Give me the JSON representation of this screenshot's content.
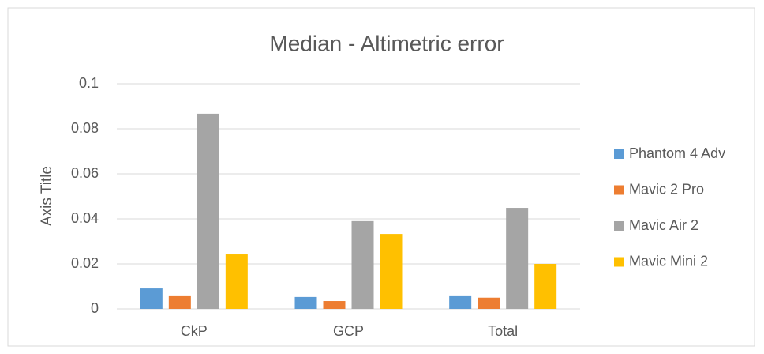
{
  "chart_data": {
    "type": "bar",
    "title": "Median - Altimetric error",
    "y_label": "Axis Title",
    "categories": [
      "CkP",
      "GCP",
      "Total"
    ],
    "series": [
      {
        "name": "Phantom 4 Adv",
        "color": "#5b9bd5",
        "values": [
          0.0091,
          0.0053,
          0.006
        ]
      },
      {
        "name": "Mavic 2 Pro",
        "color": "#ed7d31",
        "values": [
          0.006,
          0.0035,
          0.005
        ]
      },
      {
        "name": "Mavic Air 2",
        "color": "#a5a5a5",
        "values": [
          0.0867,
          0.039,
          0.0449
        ]
      },
      {
        "name": "Mavic Mini 2",
        "color": "#ffc000",
        "values": [
          0.0242,
          0.0333,
          0.02
        ]
      }
    ],
    "ylim": [
      0,
      0.1
    ],
    "yticks": [
      0,
      0.02,
      0.04,
      0.06,
      0.08,
      0.1
    ],
    "grid": true,
    "legend": "right"
  }
}
